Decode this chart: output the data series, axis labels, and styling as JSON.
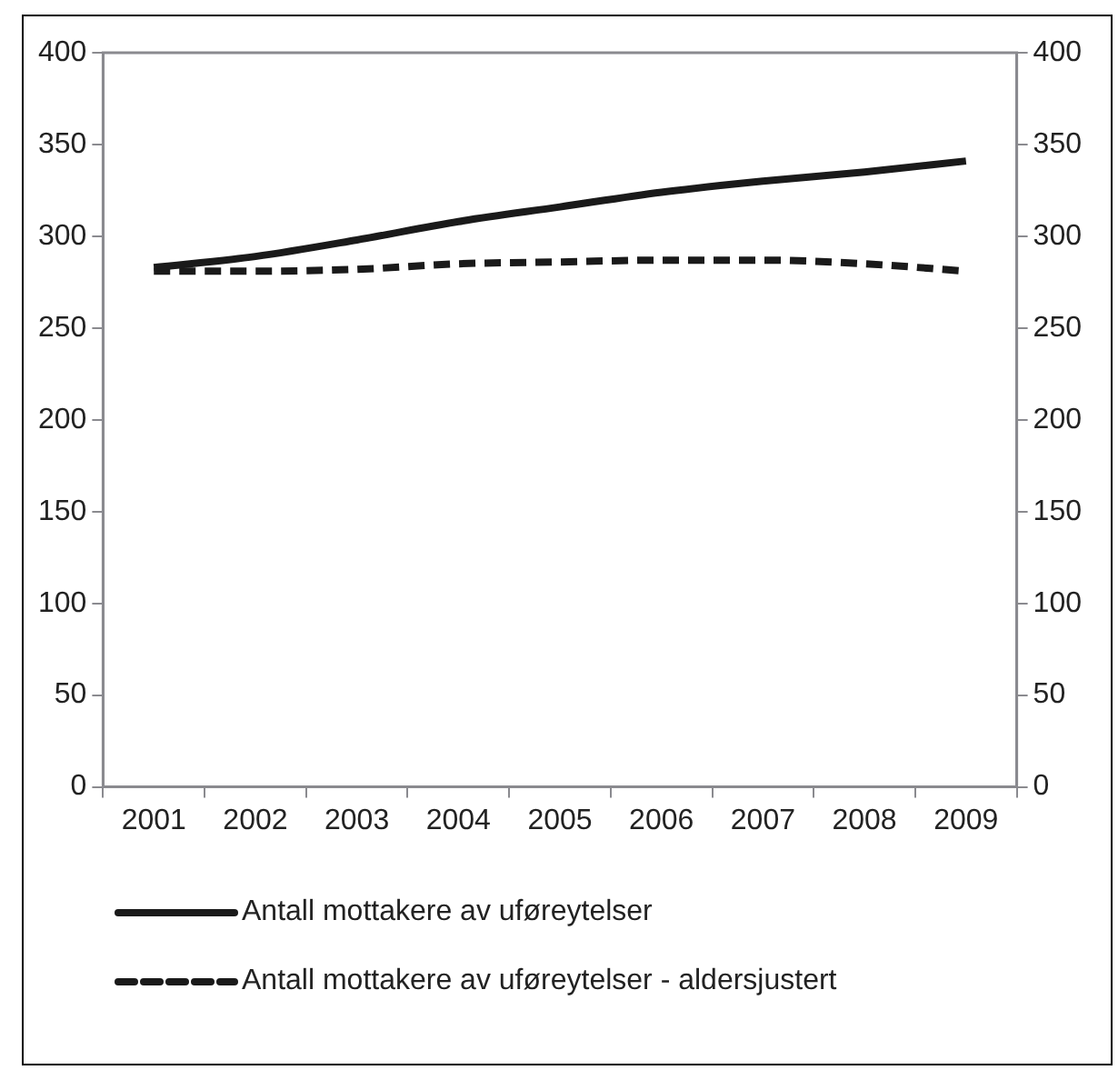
{
  "chart_data": {
    "type": "line",
    "categories": [
      "2001",
      "2002",
      "2003",
      "2004",
      "2005",
      "2006",
      "2007",
      "2008",
      "2009"
    ],
    "series": [
      {
        "name": "Antall mottakere av uføreytelser",
        "color": "#1a1a1a",
        "line_style": "solid",
        "values": [
          283,
          289,
          298,
          308,
          316,
          324,
          330,
          335,
          341
        ]
      },
      {
        "name": "Antall mottakere av uføreytelser - aldersjustert",
        "color": "#1a1a1a",
        "line_style": "dashed",
        "values": [
          281,
          281,
          282,
          285,
          286,
          287,
          287,
          285,
          281
        ]
      }
    ],
    "ylim": [
      0,
      400
    ],
    "yticks": [
      0,
      50,
      100,
      150,
      200,
      250,
      300,
      350,
      400
    ],
    "y2lim": [
      0,
      400
    ],
    "y2ticks": [
      0,
      50,
      100,
      150,
      200,
      250,
      300,
      350,
      400
    ],
    "grid": false,
    "legend": "bottom",
    "marker": "none"
  }
}
